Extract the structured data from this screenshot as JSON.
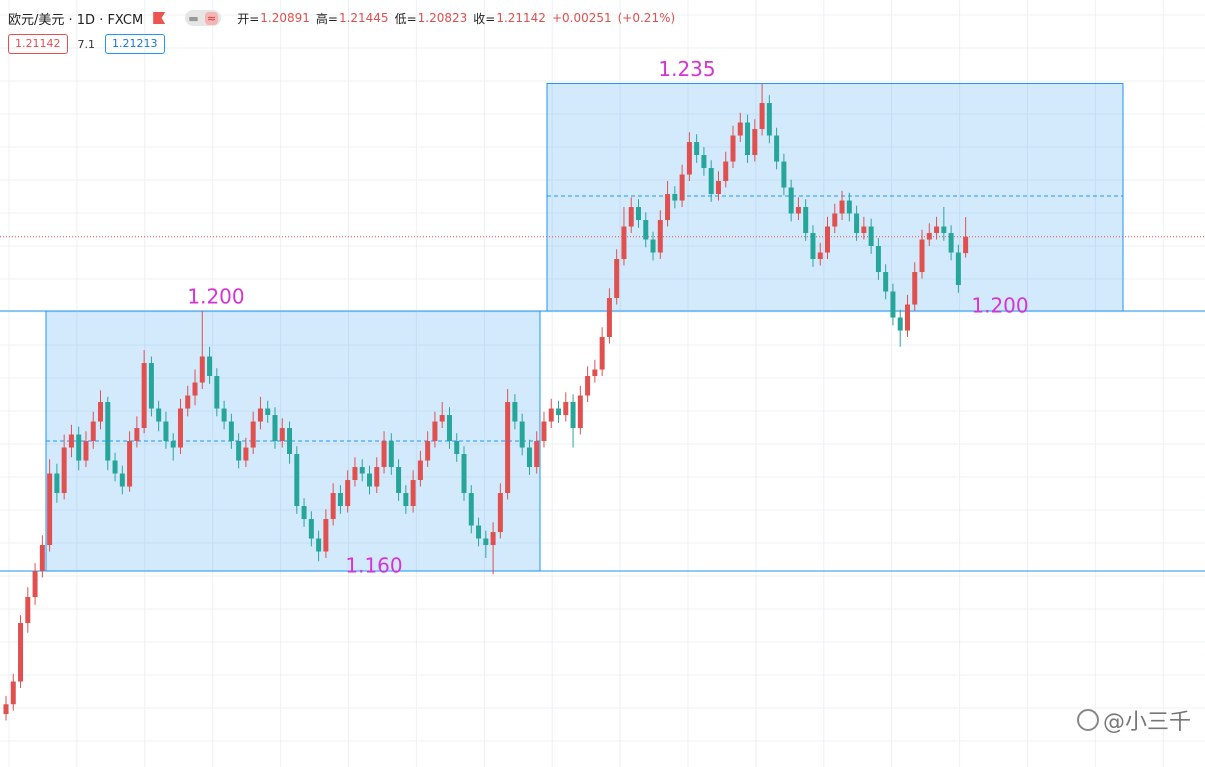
{
  "chart_data": {
    "type": "candlestick",
    "title": "欧元/美元 · 1D · FXCM",
    "header": {
      "open_label": "开=",
      "high_label": "高=",
      "low_label": "低=",
      "close_label": "收=",
      "change": "+0.00251",
      "change_pct": "(+0.21%)",
      "spread": "7.1",
      "ask": "1.21213"
    },
    "up_color": "#e0504f",
    "down_color": "#26a69a",
    "ylim": [
      1.12985,
      1.24785
    ],
    "grid": true,
    "zones": [
      {
        "top": 1.2,
        "bottom": 1.16,
        "mid": 1.18
      },
      {
        "top": 1.235,
        "bottom": 1.2,
        "mid": 1.2177
      }
    ],
    "levels": [
      1.2,
      1.16
    ],
    "annotations": [
      {
        "value": 1.2,
        "label": "1.200"
      },
      {
        "value": 1.16,
        "label": "1.160"
      },
      {
        "value": 1.235,
        "label": "1.235"
      },
      {
        "value": 1.2,
        "label": "1.200"
      }
    ],
    "candles": [
      [
        1.138,
        1.1408,
        1.137,
        1.1395
      ],
      [
        1.1395,
        1.1442,
        1.1385,
        1.143
      ],
      [
        1.143,
        1.1532,
        1.142,
        1.152
      ],
      [
        1.152,
        1.1575,
        1.1505,
        1.156
      ],
      [
        1.156,
        1.1612,
        1.1548,
        1.16
      ],
      [
        1.16,
        1.1655,
        1.159,
        1.164
      ],
      [
        1.164,
        1.1772,
        1.163,
        1.175
      ],
      [
        1.175,
        1.1765,
        1.1705,
        1.172
      ],
      [
        1.172,
        1.181,
        1.171,
        1.179
      ],
      [
        1.179,
        1.1825,
        1.1775,
        1.181
      ],
      [
        1.181,
        1.1822,
        1.1755,
        1.177
      ],
      [
        1.177,
        1.1815,
        1.176,
        1.18
      ],
      [
        1.18,
        1.1845,
        1.1788,
        1.183
      ],
      [
        1.183,
        1.1878,
        1.1818,
        1.186
      ],
      [
        1.186,
        1.1868,
        1.1755,
        1.177
      ],
      [
        1.177,
        1.1782,
        1.1738,
        1.175
      ],
      [
        1.175,
        1.1762,
        1.1718,
        1.173
      ],
      [
        1.173,
        1.1815,
        1.1722,
        1.18
      ],
      [
        1.18,
        1.1838,
        1.179,
        1.182
      ],
      [
        1.182,
        1.194,
        1.1812,
        1.192
      ],
      [
        1.192,
        1.193,
        1.1838,
        1.185
      ],
      [
        1.185,
        1.1862,
        1.1815,
        1.183
      ],
      [
        1.183,
        1.1845,
        1.1788,
        1.18
      ],
      [
        1.18,
        1.1812,
        1.177,
        1.179
      ],
      [
        1.179,
        1.1865,
        1.178,
        1.185
      ],
      [
        1.185,
        1.1885,
        1.1838,
        1.187
      ],
      [
        1.187,
        1.191,
        1.1855,
        1.189
      ],
      [
        1.189,
        1.2,
        1.188,
        1.193
      ],
      [
        1.193,
        1.1945,
        1.1888,
        1.19
      ],
      [
        1.19,
        1.1912,
        1.1838,
        1.185
      ],
      [
        1.185,
        1.1862,
        1.1818,
        1.183
      ],
      [
        1.183,
        1.1842,
        1.1788,
        1.18
      ],
      [
        1.18,
        1.1812,
        1.1758,
        1.177
      ],
      [
        1.177,
        1.1805,
        1.176,
        1.179
      ],
      [
        1.179,
        1.1845,
        1.178,
        1.183
      ],
      [
        1.183,
        1.1868,
        1.1818,
        1.185
      ],
      [
        1.185,
        1.1862,
        1.1828,
        1.184
      ],
      [
        1.184,
        1.1852,
        1.1788,
        1.18
      ],
      [
        1.18,
        1.1835,
        1.179,
        1.182
      ],
      [
        1.182,
        1.183,
        1.1765,
        1.178
      ],
      [
        1.178,
        1.1792,
        1.1688,
        1.17
      ],
      [
        1.17,
        1.1712,
        1.1668,
        1.168
      ],
      [
        1.168,
        1.1692,
        1.1638,
        1.165
      ],
      [
        1.165,
        1.1662,
        1.1615,
        1.163
      ],
      [
        1.163,
        1.1695,
        1.162,
        1.168
      ],
      [
        1.168,
        1.1735,
        1.167,
        1.172
      ],
      [
        1.172,
        1.1732,
        1.1688,
        1.17
      ],
      [
        1.17,
        1.1755,
        1.169,
        1.174
      ],
      [
        1.174,
        1.1775,
        1.173,
        1.176
      ],
      [
        1.176,
        1.1772,
        1.1738,
        1.175
      ],
      [
        1.175,
        1.1762,
        1.1718,
        1.173
      ],
      [
        1.173,
        1.1775,
        1.172,
        1.176
      ],
      [
        1.176,
        1.1815,
        1.175,
        1.18
      ],
      [
        1.18,
        1.1812,
        1.1748,
        1.176
      ],
      [
        1.176,
        1.1772,
        1.1708,
        1.172
      ],
      [
        1.172,
        1.1732,
        1.1688,
        1.17
      ],
      [
        1.17,
        1.1755,
        1.169,
        1.174
      ],
      [
        1.174,
        1.1785,
        1.173,
        1.177
      ],
      [
        1.177,
        1.1815,
        1.176,
        1.18
      ],
      [
        1.18,
        1.1845,
        1.179,
        1.183
      ],
      [
        1.183,
        1.186,
        1.182,
        1.184
      ],
      [
        1.184,
        1.1852,
        1.1788,
        1.18
      ],
      [
        1.18,
        1.1812,
        1.1768,
        1.178
      ],
      [
        1.178,
        1.1792,
        1.1708,
        1.172
      ],
      [
        1.172,
        1.1732,
        1.1658,
        1.167
      ],
      [
        1.167,
        1.1682,
        1.1638,
        1.165
      ],
      [
        1.165,
        1.1662,
        1.162,
        1.164
      ],
      [
        1.164,
        1.1675,
        1.1595,
        1.166
      ],
      [
        1.166,
        1.1735,
        1.165,
        1.172
      ],
      [
        1.172,
        1.188,
        1.171,
        1.186
      ],
      [
        1.186,
        1.1872,
        1.1818,
        1.183
      ],
      [
        1.183,
        1.1842,
        1.1778,
        1.179
      ],
      [
        1.179,
        1.1802,
        1.1748,
        1.176
      ],
      [
        1.176,
        1.1815,
        1.175,
        1.18
      ],
      [
        1.18,
        1.1845,
        1.179,
        1.183
      ],
      [
        1.183,
        1.1865,
        1.182,
        1.185
      ],
      [
        1.185,
        1.1862,
        1.1828,
        1.184
      ],
      [
        1.184,
        1.1875,
        1.183,
        1.186
      ],
      [
        1.186,
        1.1872,
        1.179,
        1.182
      ],
      [
        1.182,
        1.1885,
        1.181,
        1.187
      ],
      [
        1.187,
        1.1915,
        1.186,
        1.19
      ],
      [
        1.19,
        1.1925,
        1.189,
        1.191
      ],
      [
        1.191,
        1.1975,
        1.19,
        1.196
      ],
      [
        1.196,
        1.2035,
        1.195,
        1.202
      ],
      [
        1.202,
        1.2095,
        1.201,
        1.208
      ],
      [
        1.208,
        1.216,
        1.207,
        1.213
      ],
      [
        1.213,
        1.2175,
        1.212,
        1.216
      ],
      [
        1.216,
        1.2172,
        1.2128,
        1.214
      ],
      [
        1.214,
        1.2152,
        1.2098,
        1.211
      ],
      [
        1.211,
        1.2122,
        1.2078,
        1.209
      ],
      [
        1.209,
        1.2155,
        1.208,
        1.214
      ],
      [
        1.214,
        1.22,
        1.213,
        1.218
      ],
      [
        1.218,
        1.2192,
        1.2158,
        1.217
      ],
      [
        1.217,
        1.2225,
        1.216,
        1.221
      ],
      [
        1.221,
        1.2275,
        1.22,
        1.226
      ],
      [
        1.226,
        1.2272,
        1.2228,
        1.224
      ],
      [
        1.224,
        1.2252,
        1.2208,
        1.222
      ],
      [
        1.222,
        1.2232,
        1.2168,
        1.218
      ],
      [
        1.218,
        1.2215,
        1.217,
        1.22
      ],
      [
        1.22,
        1.2245,
        1.219,
        1.223
      ],
      [
        1.223,
        1.2285,
        1.222,
        1.227
      ],
      [
        1.227,
        1.2305,
        1.226,
        1.229
      ],
      [
        1.229,
        1.2302,
        1.2228,
        1.224
      ],
      [
        1.224,
        1.2295,
        1.223,
        1.228
      ],
      [
        1.228,
        1.235,
        1.227,
        1.232
      ],
      [
        1.232,
        1.2332,
        1.2258,
        1.227
      ],
      [
        1.227,
        1.2282,
        1.2218,
        1.223
      ],
      [
        1.223,
        1.2242,
        1.2178,
        1.219
      ],
      [
        1.219,
        1.2202,
        1.2138,
        1.215
      ],
      [
        1.215,
        1.2175,
        1.214,
        1.216
      ],
      [
        1.216,
        1.2172,
        1.2108,
        1.212
      ],
      [
        1.212,
        1.2132,
        1.2068,
        1.208
      ],
      [
        1.208,
        1.2105,
        1.207,
        1.209
      ],
      [
        1.209,
        1.2145,
        1.208,
        1.213
      ],
      [
        1.213,
        1.2165,
        1.212,
        1.215
      ],
      [
        1.215,
        1.2185,
        1.214,
        1.217
      ],
      [
        1.217,
        1.2182,
        1.2138,
        1.215
      ],
      [
        1.215,
        1.2162,
        1.2108,
        1.212
      ],
      [
        1.212,
        1.2145,
        1.211,
        1.213
      ],
      [
        1.213,
        1.2142,
        1.2088,
        1.21
      ],
      [
        1.21,
        1.2112,
        1.2048,
        1.206
      ],
      [
        1.206,
        1.2072,
        1.2018,
        1.203
      ],
      [
        1.203,
        1.2042,
        1.1978,
        1.199
      ],
      [
        1.199,
        1.2002,
        1.1945,
        1.197
      ],
      [
        1.197,
        1.2025,
        1.196,
        1.201
      ],
      [
        1.201,
        1.2075,
        1.2,
        1.206
      ],
      [
        1.206,
        1.2125,
        1.205,
        1.211
      ],
      [
        1.211,
        1.2135,
        1.21,
        1.212
      ],
      [
        1.212,
        1.2145,
        1.211,
        1.213
      ],
      [
        1.213,
        1.216,
        1.2108,
        1.212
      ],
      [
        1.212,
        1.2132,
        1.2078,
        1.209
      ],
      [
        1.209,
        1.2102,
        1.2028,
        1.204
      ],
      [
        1.20891,
        1.21445,
        1.20823,
        1.21142
      ]
    ]
  },
  "watermark": "@小三千"
}
